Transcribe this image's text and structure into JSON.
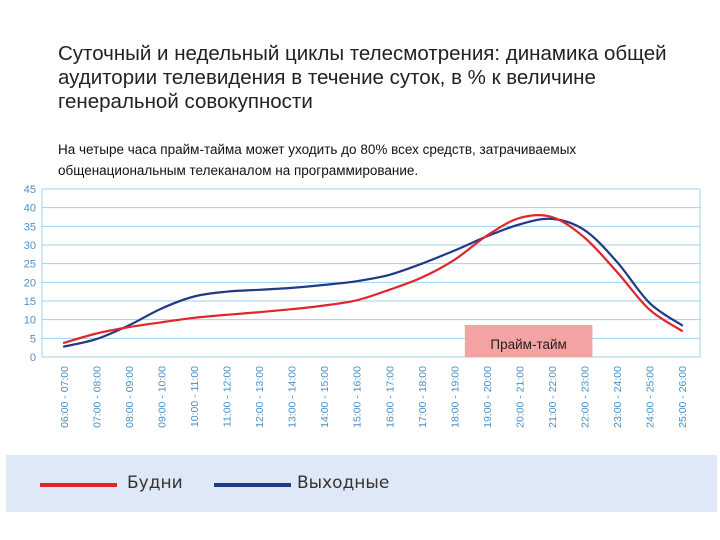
{
  "title": "Суточный и недельный циклы телесмотрения: динамика общей аудитории телевидения в течение суток, в % к величине генеральной совокупности",
  "subtitle": "На четыре часа прайм-тайма может уходить до 80% всех средств, затрачиваемых общенациональным телеканалом на программирование.",
  "chart_data": {
    "type": "line",
    "categories": [
      "06:00 - 07:00",
      "07:00 - 08:00",
      "08:00 - 09:00",
      "09:00 - 10:00",
      "10:00 - 11:00",
      "11:00 - 12:00",
      "12:00 - 13:00",
      "13:00 - 14:00",
      "14:00 - 15:00",
      "15:00 - 16:00",
      "16:00 - 17:00",
      "17:00 - 18:00",
      "18:00 - 19:00",
      "19:00 - 20:00",
      "20:00 - 21:00",
      "21:00 - 22:00",
      "22:00 - 23:00",
      "23:00 - 24:00",
      "24:00 - 25:00",
      "25:00 - 26:00"
    ],
    "tick_labels": [
      "06:00 - 07:00",
      "07:00 - 08:00",
      "08:00 - 09:00",
      "09:00 - 10:00",
      "10:00 - 11:00",
      "11:00 - 12:00",
      "12:00 - 13:00",
      "13:00 - 14:00",
      "14:00 - 15:00",
      "15:00 - 16:00",
      "16:00 - 17:00",
      "17:00 - 18:00",
      "18:00 - 19:00",
      "19:00 - 20:00",
      "20:00 - 21:00",
      "21:00 - 22:00",
      "22:00 - 23:00",
      "23:00 - 24:00",
      "24:00 - 25:00",
      "25:00 - 26:00"
    ],
    "y_ticks": [
      0,
      5,
      10,
      15,
      20,
      25,
      30,
      35,
      40,
      45
    ],
    "ylim": [
      0,
      45
    ],
    "grid": true,
    "legend_position": "bottom",
    "series": [
      {
        "name": "Будни",
        "color": "#e0252b",
        "values": [
          3.8,
          6.3,
          8,
          9.3,
          10.5,
          11.3,
          12,
          12.8,
          13.8,
          15.2,
          18,
          21.3,
          26,
          32.5,
          37.2,
          37.5,
          32,
          22.8,
          12.7,
          7
        ]
      },
      {
        "name": "Выходные",
        "color": "#1f3b86",
        "values": [
          2.8,
          4.8,
          8.5,
          13,
          16.2,
          17.5,
          18,
          18.5,
          19.3,
          20.3,
          22,
          25,
          28.5,
          32.3,
          35.5,
          37,
          34,
          25.5,
          14.5,
          8.5
        ]
      }
    ],
    "annotations": [
      {
        "text": "Прайм-тайм",
        "from": "19:00 - 20:00",
        "to": "22:00 - 23:00"
      }
    ]
  }
}
